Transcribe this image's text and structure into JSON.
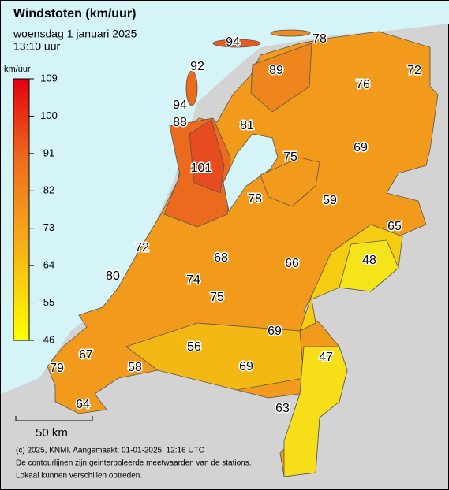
{
  "header": {
    "title": "Windstoten (km/uur)",
    "date": "woensdag 1 januari 2025",
    "time": "13:10 uur"
  },
  "legend": {
    "unit": "km/uur",
    "ticks": [
      109,
      100,
      91,
      82,
      73,
      64,
      55,
      46
    ]
  },
  "stations": [
    94,
    78,
    92,
    89,
    76,
    72,
    94,
    88,
    81,
    69,
    101,
    75,
    78,
    59,
    65,
    72,
    48,
    68,
    66,
    80,
    74,
    75,
    69,
    56,
    47,
    67,
    58,
    69,
    79,
    64,
    63
  ],
  "scale_bar": "50 km",
  "footer": [
    "(c) 2025, KNMI. Aangemaakt: 01-01-2025, 12:16 UTC",
    "De contourlijnen zijn geinterpoleerde meetwaarden van de stations.",
    "Lokaal kunnen verschillen optreden."
  ]
}
